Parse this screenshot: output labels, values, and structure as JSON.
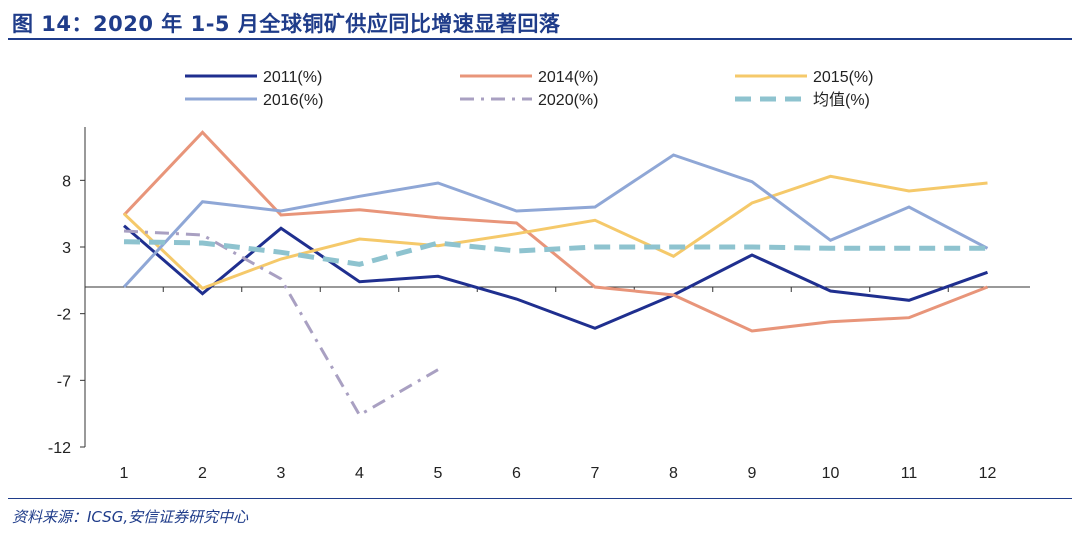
{
  "title": "图 14：2020 年 1-5 月全球铜矿供应同比增速显著回落",
  "source": "资料来源：ICSG,安信证券研究中心",
  "chart_data": {
    "type": "line",
    "categories": [
      "1",
      "2",
      "3",
      "4",
      "5",
      "6",
      "7",
      "8",
      "9",
      "10",
      "11",
      "12"
    ],
    "ylim": [
      -12,
      12
    ],
    "yticks": [
      "8",
      "3",
      "-2",
      "-7",
      "-12"
    ],
    "ytick_values": [
      8,
      3,
      -2,
      -7,
      -12
    ],
    "legend_position": "top",
    "series": [
      {
        "name": "2011(%)",
        "color": "#1f2f8f",
        "dash": "solid",
        "values": [
          4.6,
          -0.5,
          4.4,
          0.4,
          0.8,
          -0.9,
          -3.1,
          -0.6,
          2.4,
          -0.3,
          -1.0,
          1.1
        ]
      },
      {
        "name": "2014(%)",
        "color": "#e8957a",
        "dash": "solid",
        "values": [
          5.4,
          11.6,
          5.4,
          5.8,
          5.2,
          4.8,
          0.0,
          -0.6,
          -3.3,
          -2.6,
          -2.3,
          0.0
        ]
      },
      {
        "name": "2015(%)",
        "color": "#f5c96a",
        "dash": "solid",
        "values": [
          5.5,
          -0.1,
          2.1,
          3.6,
          3.1,
          4.0,
          5.0,
          2.3,
          6.3,
          8.3,
          7.2,
          7.8
        ]
      },
      {
        "name": "2016(%)",
        "color": "#8fa7d6",
        "dash": "solid",
        "values": [
          0.0,
          6.4,
          5.7,
          6.8,
          7.8,
          5.7,
          6.0,
          9.9,
          7.9,
          3.5,
          6.0,
          2.9
        ]
      },
      {
        "name": "2020(%)",
        "color": "#a9a0c2",
        "dash": "dashdot",
        "values": [
          4.2,
          3.9,
          0.6,
          -9.6,
          -6.2,
          null,
          null,
          null,
          null,
          null,
          null,
          null
        ]
      },
      {
        "name": "均值(%)",
        "color": "#8ec3cf",
        "dash": "dash",
        "values": [
          3.4,
          3.3,
          2.6,
          1.7,
          3.3,
          2.7,
          3.0,
          3.0,
          3.0,
          2.9,
          2.9,
          2.9
        ]
      }
    ]
  }
}
